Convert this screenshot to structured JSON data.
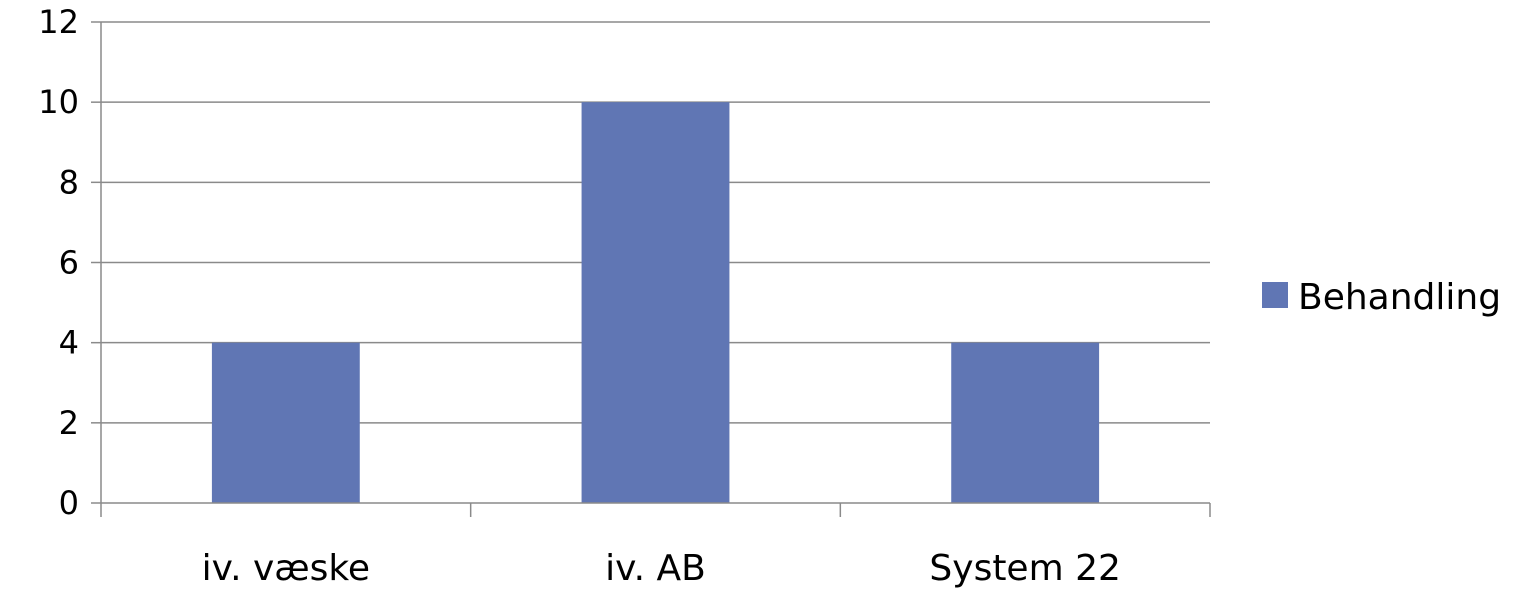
{
  "chart_data": {
    "type": "bar",
    "title": "",
    "xlabel": "",
    "ylabel": "",
    "categories": [
      "iv. væske",
      "iv. AB",
      "System 22"
    ],
    "series": [
      {
        "name": "Behandling",
        "values": [
          4,
          10,
          4
        ],
        "color": "#6076b4"
      }
    ],
    "ylim": [
      0,
      12
    ],
    "yticks": [
      "0",
      "2",
      "4",
      "6",
      "8",
      "10",
      "12"
    ],
    "grid": true,
    "legend_position": "right"
  }
}
